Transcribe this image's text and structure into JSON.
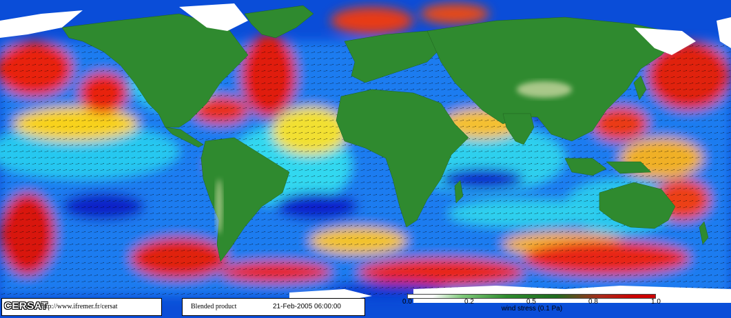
{
  "map": {
    "field": "wind stress",
    "land_color": "#2f8a2f",
    "ice_color": "#ffffff",
    "low_color": "#0a2ad8",
    "mid_color": "#22d0ff",
    "high_color": "#ff2a10"
  },
  "footer": {
    "logo_text": "CERSAT",
    "url": "http://www.ifremer.fr/cersat",
    "product_label": "Blended product",
    "timestamp": "21-Feb-2005 06:00:00"
  },
  "scale": {
    "ticks": [
      "0.0",
      "0.2",
      "0.5",
      "0.8",
      "1.0"
    ],
    "label": "wind stress (0.1 Pa)"
  }
}
